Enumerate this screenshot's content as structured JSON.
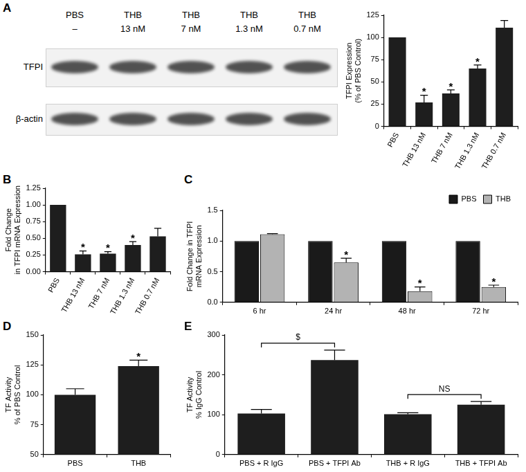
{
  "blot": {
    "panel": "A",
    "columns": [
      {
        "treatment": "PBS",
        "dose": "–"
      },
      {
        "treatment": "THB",
        "dose": "13 nM"
      },
      {
        "treatment": "THB",
        "dose": "7 nM"
      },
      {
        "treatment": "THB",
        "dose": "1.3 nM"
      },
      {
        "treatment": "THB",
        "dose": "0.7 nM"
      }
    ],
    "rows": [
      "TFPI",
      "β-actin"
    ]
  },
  "chart_data": [
    {
      "type": "bar",
      "categories": [
        "PBS",
        "THB 13 nM",
        "THB 7 nM",
        "THB 1.3 nM",
        "THB 0.7 nM"
      ],
      "values": [
        100,
        27,
        37,
        65,
        111
      ],
      "errors": [
        null,
        8,
        4,
        4,
        8
      ],
      "significance": [
        null,
        "*",
        "*",
        "*",
        null
      ],
      "color": "#1e1e1e",
      "y_label": [
        "TFPI Expression",
        "(% of PBS Control)"
      ],
      "ylim": [
        0,
        125
      ],
      "yticks": [
        0,
        25,
        50,
        75,
        100,
        125
      ],
      "grid": false
    },
    {
      "panel": "B",
      "type": "bar",
      "categories": [
        "PBS",
        "THB 13 nM",
        "THB 7 nM",
        "THB 1.3 nM",
        "THB 0.7 nM"
      ],
      "values": [
        1,
        0.26,
        0.27,
        0.4,
        0.53
      ],
      "errors": [
        null,
        0.05,
        0.03,
        0.05,
        0.12
      ],
      "significance": [
        null,
        "*",
        "*",
        "*",
        null
      ],
      "color": "#1e1e1e",
      "y_label": [
        "Fold Change",
        "in TFPI mRNA Expression"
      ],
      "ylim": [
        0,
        1.25
      ],
      "yticks": [
        {
          "value": 0,
          "label": "0.00"
        },
        {
          "value": 0.25,
          "label": "0.25"
        },
        {
          "value": 0.5,
          "label": "0.50"
        },
        {
          "value": 0.75,
          "label": "0.75"
        },
        {
          "value": 1,
          "label": "1.00"
        },
        {
          "value": 1.25,
          "label": "1.25"
        }
      ],
      "grid": false
    },
    {
      "panel": "C",
      "type": "bar",
      "categories": [
        "6 hr",
        "24 hr",
        "48 hr",
        "72 hr"
      ],
      "series": [
        {
          "name": "PBS",
          "color": "#1a1a1a",
          "values": [
            1,
            1,
            1,
            1
          ],
          "errors": [
            null,
            null,
            null,
            null
          ],
          "significance": [
            null,
            null,
            null,
            null
          ]
        },
        {
          "name": "THB",
          "color": "#b3b3b3",
          "values": [
            1.11,
            0.65,
            0.18,
            0.25
          ],
          "errors": [
            0.01,
            0.07,
            0.07,
            0.03
          ],
          "significance": [
            null,
            "*",
            "*",
            "*"
          ]
        }
      ],
      "y_label": [
        "Fold Change in TFPI",
        "mRNA Expression"
      ],
      "ylim": [
        0,
        1.5
      ],
      "yticks": [
        {
          "value": 0,
          "label": "0.0"
        },
        {
          "value": 0.5,
          "label": "0.5"
        },
        {
          "value": 1,
          "label": "1.0"
        },
        {
          "value": 1.5,
          "label": "1.5"
        }
      ],
      "grid": false,
      "legend": "top right"
    },
    {
      "panel": "D",
      "type": "bar",
      "categories": [
        "PBS",
        "THB"
      ],
      "values": [
        100,
        124
      ],
      "errors": [
        5,
        5
      ],
      "significance": [
        null,
        "*"
      ],
      "color": "#1e1e1e",
      "y_label": [
        "TF Activity",
        "% of PBS Control"
      ],
      "ylim": [
        50,
        150
      ],
      "yticks": [
        50,
        75,
        100,
        125,
        150
      ],
      "grid": false
    },
    {
      "panel": "E",
      "type": "bar",
      "categories": [
        "PBS + R IgG",
        "PBS + TFPI Ab",
        "THB + R IgG",
        "THB + TFPI Ab"
      ],
      "values": [
        103,
        237,
        101,
        125
      ],
      "errors": [
        10,
        25,
        4,
        8
      ],
      "color": "#1e1e1e",
      "comparisons": [
        {
          "from": 0,
          "to": 1,
          "label": "$"
        },
        {
          "from": 2,
          "to": 3,
          "label": "NS"
        }
      ],
      "y_label": [
        "TF Activity",
        "% IgG Control"
      ],
      "ylim": [
        0,
        300
      ],
      "yticks": [
        0,
        100,
        200,
        300
      ],
      "grid": false
    }
  ]
}
